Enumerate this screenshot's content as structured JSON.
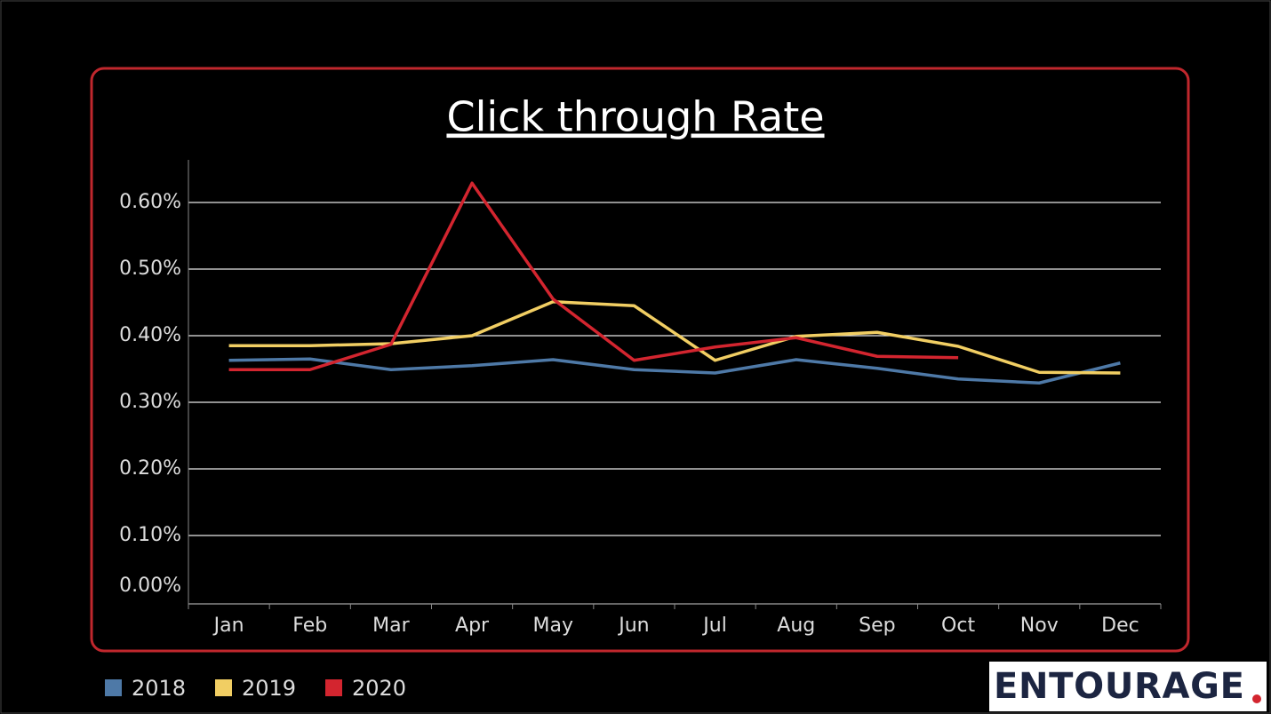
{
  "chart_data": {
    "type": "line",
    "title": "Click through Rate",
    "categories": [
      "Jan",
      "Feb",
      "Mar",
      "Apr",
      "May",
      "Jun",
      "Jul",
      "Aug",
      "Sep",
      "Oct",
      "Nov",
      "Dec"
    ],
    "series": [
      {
        "name": "2018",
        "color": "#4e79a7",
        "values": [
          0.363,
          0.365,
          0.349,
          0.355,
          0.364,
          0.349,
          0.344,
          0.364,
          0.351,
          0.335,
          0.329,
          0.359
        ]
      },
      {
        "name": "2019",
        "color": "#f1ce63",
        "values": [
          0.385,
          0.385,
          0.388,
          0.4,
          0.451,
          0.445,
          0.363,
          0.399,
          0.405,
          0.384,
          0.345,
          0.344
        ]
      },
      {
        "name": "2020",
        "color": "#d3252f",
        "values": [
          0.349,
          0.349,
          0.387,
          0.629,
          0.455,
          0.363,
          0.383,
          0.397,
          0.369,
          0.367,
          null,
          null
        ]
      }
    ],
    "ylim": [
      0,
      0.664
    ],
    "yticks": [
      {
        "value": 0,
        "label": "0.00%"
      },
      {
        "value": 0.1,
        "label": "0.10%"
      },
      {
        "value": 0.2,
        "label": "0.20%"
      },
      {
        "value": 0.3,
        "label": "0.30%"
      },
      {
        "value": 0.4,
        "label": "0.40%"
      },
      {
        "value": 0.5,
        "label": "0.50%"
      },
      {
        "value": 0.6,
        "label": "0.60%"
      }
    ],
    "grid": true,
    "legend": "bottom-left",
    "logo": "ENTOURAGE"
  }
}
